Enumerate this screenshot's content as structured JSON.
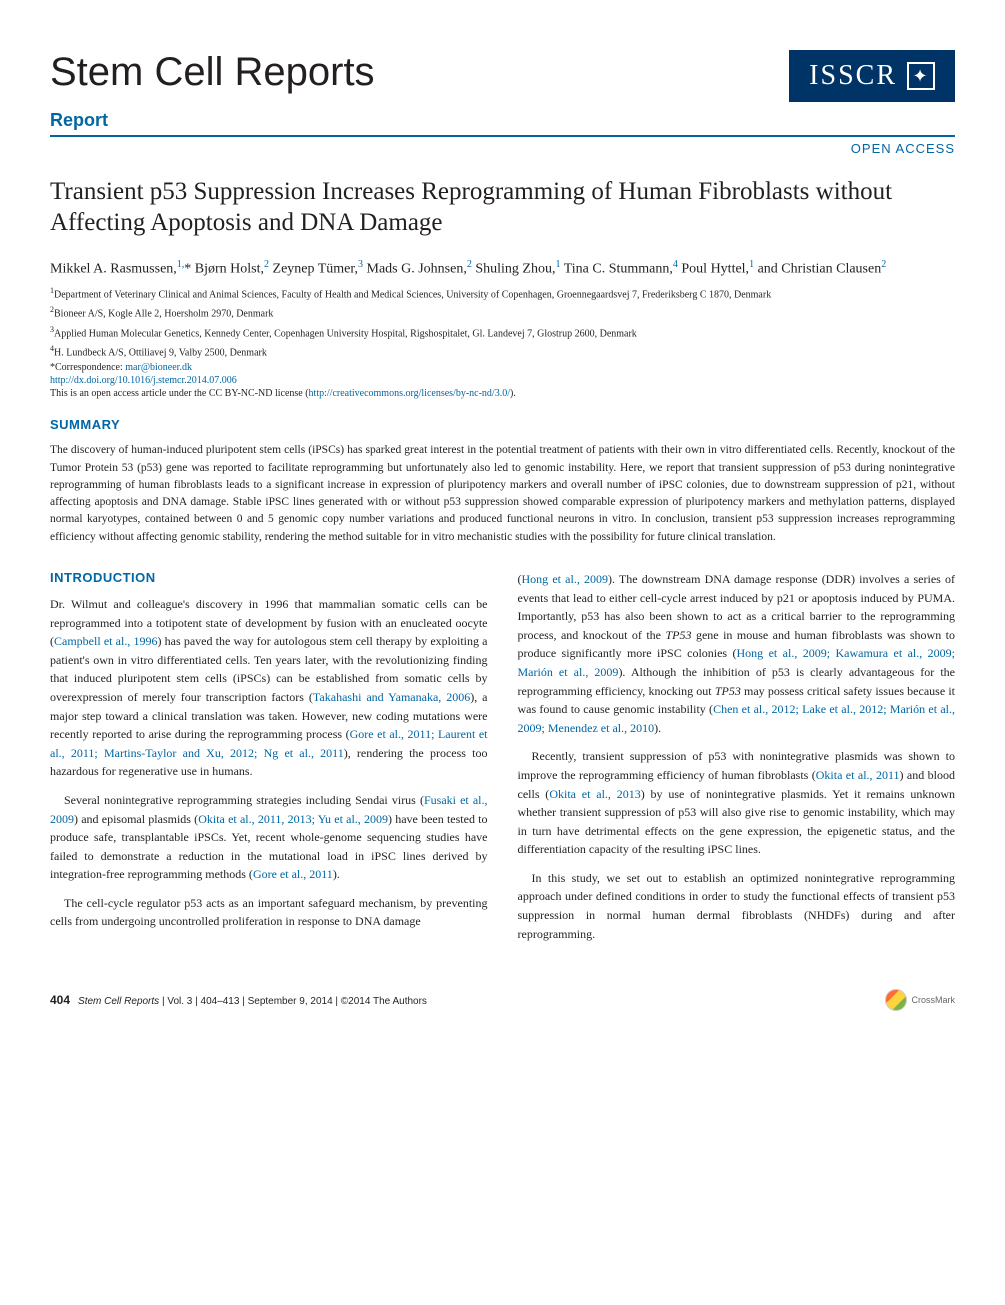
{
  "header": {
    "journal_title": "Stem Cell Reports",
    "badge_text": "ISSCR",
    "report_label": "Report",
    "open_access": "OPEN ACCESS"
  },
  "article": {
    "title": "Transient p53 Suppression Increases Reprogramming of Human Fibroblasts without Affecting Apoptosis and DNA Damage",
    "authors_html": "Mikkel A. Rasmussen,<sup>1,</sup>* Bjørn Holst,<sup>2</sup> Zeynep Tümer,<sup>3</sup> Mads G. Johnsen,<sup>2</sup> Shuling Zhou,<sup>1</sup> Tina C. Stummann,<sup>4</sup> Poul Hyttel,<sup>1</sup> and Christian Clausen<sup>2</sup>",
    "affiliations": [
      "1Department of Veterinary Clinical and Animal Sciences, Faculty of Health and Medical Sciences, University of Copenhagen, Groennegaardsvej 7, Frederiksberg C 1870, Denmark",
      "2Bioneer A/S, Kogle Alle 2, Hoersholm 2970, Denmark",
      "3Applied Human Molecular Genetics, Kennedy Center, Copenhagen University Hospital, Rigshospitalet, Gl. Landevej 7, Glostrup 2600, Denmark",
      "4H. Lundbeck A/S, Ottiliavej 9, Valby 2500, Denmark"
    ],
    "correspondence_label": "*Correspondence: ",
    "correspondence_email": "mar@bioneer.dk",
    "doi": "http://dx.doi.org/10.1016/j.stemcr.2014.07.006",
    "license_prefix": "This is an open access article under the CC BY-NC-ND license (",
    "license_url": "http://creativecommons.org/licenses/by-nc-nd/3.0/",
    "license_suffix": ")."
  },
  "sections": {
    "summary_heading": "SUMMARY",
    "summary_text": "The discovery of human-induced pluripotent stem cells (iPSCs) has sparked great interest in the potential treatment of patients with their own in vitro differentiated cells. Recently, knockout of the Tumor Protein 53 (p53) gene was reported to facilitate reprogramming but unfortunately also led to genomic instability. Here, we report that transient suppression of p53 during nonintegrative reprogramming of human fibroblasts leads to a significant increase in expression of pluripotency markers and overall number of iPSC colonies, due to downstream suppression of p21, without affecting apoptosis and DNA damage. Stable iPSC lines generated with or without p53 suppression showed comparable expression of pluripotency markers and methylation patterns, displayed normal karyotypes, contained between 0 and 5 genomic copy number variations and produced functional neurons in vitro. In conclusion, transient p53 suppression increases reprogramming efficiency without affecting genomic stability, rendering the method suitable for in vitro mechanistic studies with the possibility for future clinical translation.",
    "intro_heading": "INTRODUCTION"
  },
  "intro_paragraphs": {
    "left": [
      "Dr. Wilmut and colleague's discovery in 1996 that mammalian somatic cells can be reprogrammed into a totipotent state of development by fusion with an enucleated oocyte (<span class='cite'>Campbell et al., 1996</span>) has paved the way for autologous stem cell therapy by exploiting a patient's own in vitro differentiated cells. Ten years later, with the revolutionizing finding that induced pluripotent stem cells (iPSCs) can be established from somatic cells by overexpression of merely four transcription factors (<span class='cite'>Takahashi and Yamanaka, 2006</span>), a major step toward a clinical translation was taken. However, new coding mutations were recently reported to arise during the reprogramming process (<span class='cite'>Gore et al., 2011; Laurent et al., 2011; Martins-Taylor and Xu, 2012; Ng et al., 2011</span>), rendering the process too hazardous for regenerative use in humans.",
      "Several nonintegrative reprogramming strategies including Sendai virus (<span class='cite'>Fusaki et al., 2009</span>) and episomal plasmids (<span class='cite'>Okita et al., 2011, 2013; Yu et al., 2009</span>) have been tested to produce safe, transplantable iPSCs. Yet, recent whole-genome sequencing studies have failed to demonstrate a reduction in the mutational load in iPSC lines derived by integration-free reprogramming methods (<span class='cite'>Gore et al., 2011</span>).",
      "The cell-cycle regulator p53 acts as an important safeguard mechanism, by preventing cells from undergoing uncontrolled proliferation in response to DNA damage"
    ],
    "right": [
      "(<span class='cite'>Hong et al., 2009</span>). The downstream DNA damage response (DDR) involves a series of events that lead to either cell-cycle arrest induced by p21 or apoptosis induced by PUMA. Importantly, p53 has also been shown to act as a critical barrier to the reprogramming process, and knockout of the <span class='ital'>TP53</span> gene in mouse and human fibroblasts was shown to produce significantly more iPSC colonies (<span class='cite'>Hong et al., 2009; Kawamura et al., 2009; Marión et al., 2009</span>). Although the inhibition of p53 is clearly advantageous for the reprogramming efficiency, knocking out <span class='ital'>TP53</span> may possess critical safety issues because it was found to cause genomic instability (<span class='cite'>Chen et al., 2012; Lake et al., 2012; Marión et al., 2009; Menendez et al., 2010</span>).",
      "Recently, transient suppression of p53 with nonintegrative plasmids was shown to improve the reprogramming efficiency of human fibroblasts (<span class='cite'>Okita et al., 2011</span>) and blood cells (<span class='cite'>Okita et al., 2013</span>) by use of nonintegrative plasmids. Yet it remains unknown whether transient suppression of p53 will also give rise to genomic instability, which may in turn have detrimental effects on the gene expression, the epigenetic status, and the differentiation capacity of the resulting iPSC lines.",
      "In this study, we set out to establish an optimized nonintegrative reprogramming approach under defined conditions in order to study the functional effects of transient p53 suppression in normal human dermal fibroblasts (NHDFs) during and after reprogramming."
    ]
  },
  "footer": {
    "page_number": "404",
    "journal_ref": "Stem Cell Reports",
    "vol_info": "| Vol. 3 | 404–413 | September 9, 2014 | ©2014 The Authors",
    "crossmark_label": "CrossMark"
  },
  "colors": {
    "brand_blue": "#0066a4",
    "dark_navy": "#003366",
    "text": "#231f20"
  }
}
